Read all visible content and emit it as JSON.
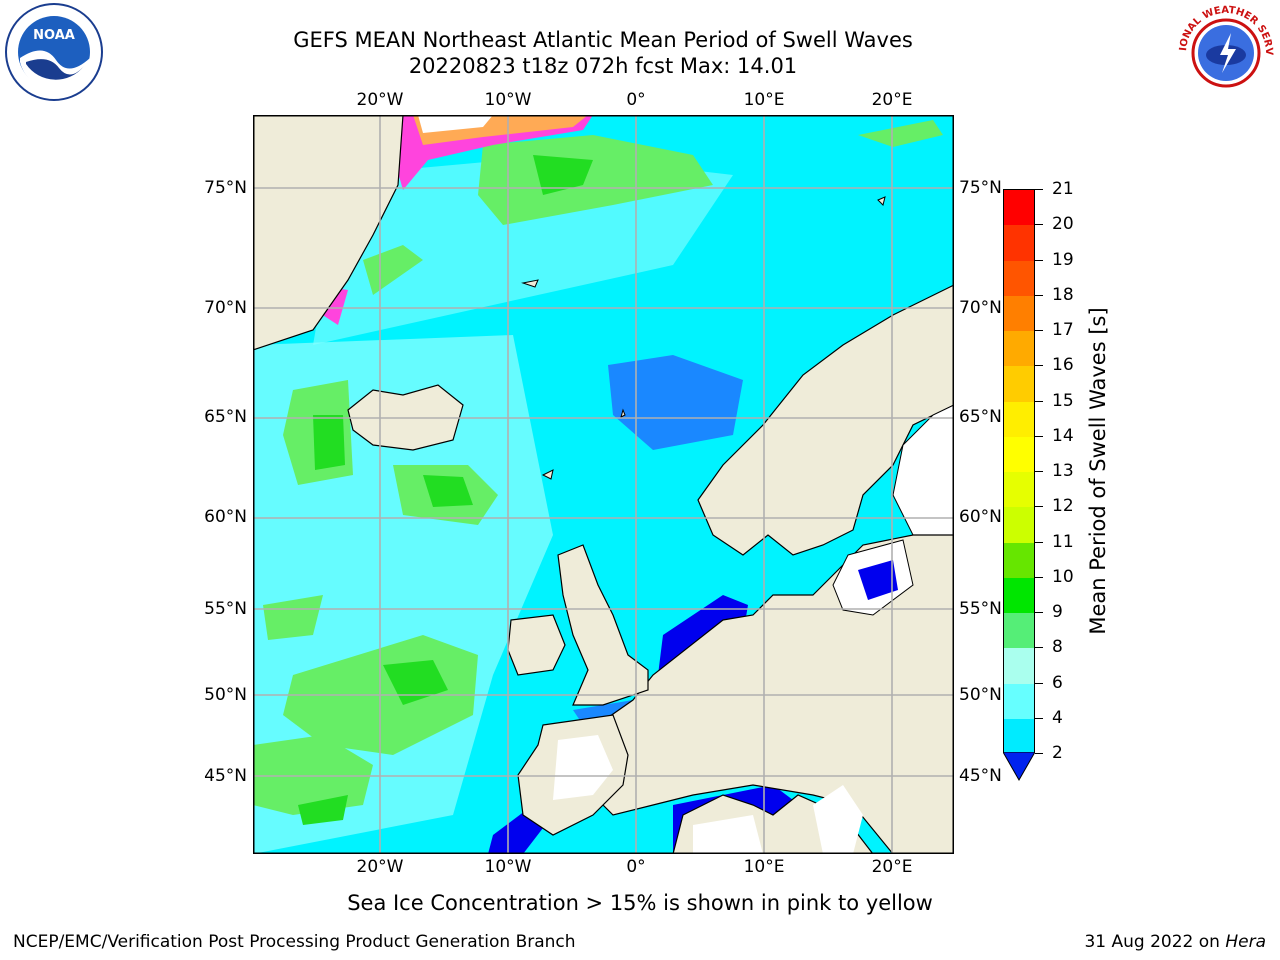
{
  "title": {
    "line1": "GEFS MEAN Northeast Atlantic Mean Period of Swell Waves",
    "line2": "20220823 t18z 072h fcst   Max: 14.01"
  },
  "logos": {
    "left": "NOAA",
    "right": "NATIONAL WEATHER SERVICE",
    "left_icon": "noaa-logo",
    "right_icon": "nws-logo"
  },
  "axes": {
    "longitude_labels": [
      "20°W",
      "10°W",
      "0°",
      "10°E",
      "20°E"
    ],
    "latitude_labels": [
      "75°N",
      "70°N",
      "65°N",
      "60°N",
      "55°N",
      "50°N",
      "45°N"
    ]
  },
  "colorbar": {
    "label": "Mean Period of Swell Waves [s]",
    "ticks": [
      "21",
      "20",
      "19",
      "18",
      "17",
      "16",
      "15",
      "14",
      "13",
      "12",
      "11",
      "10",
      "9",
      "8",
      "6",
      "4",
      "2"
    ],
    "colors": [
      "#ff0000",
      "#ff3300",
      "#ff5500",
      "#ff7f00",
      "#ffaa00",
      "#ffcc00",
      "#ffee00",
      "#ffff00",
      "#e6ff00",
      "#ccff00",
      "#66e600",
      "#00e600",
      "#55ee77",
      "#aaffee",
      "#66ffff",
      "#00ebff",
      "#0088ff",
      "#0022ee"
    ]
  },
  "note": "Sea Ice Concentration > 15% is shown in pink to yellow",
  "footer": {
    "left": "NCEP/EMC/Verification Post Processing Product Generation Branch",
    "date": "31 Aug 2022 on ",
    "host": "Hera"
  },
  "map_colors": {
    "land": "#efecd9",
    "ocean_main": "#00f3ff",
    "ocean_light": "#88ffff",
    "swell_green": "#66ee66",
    "swell_green_dark": "#22dd22",
    "swell_blue": "#1a88ff",
    "swell_darkblue": "#0000ee",
    "ice_pink": "#ff44dd",
    "ice_yellow": "#ffff66",
    "grid": "#b0b0b0"
  }
}
